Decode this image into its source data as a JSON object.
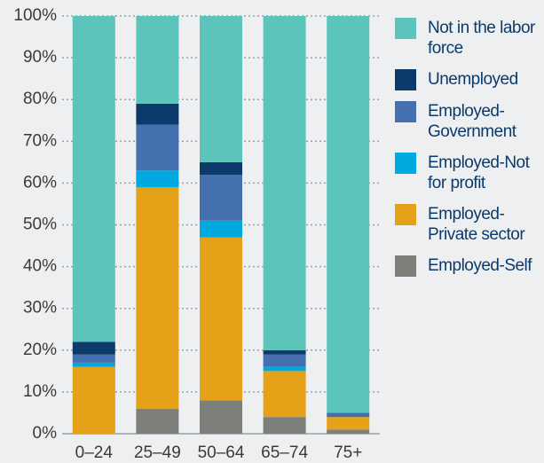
{
  "chart_data": {
    "type": "stacked_bar",
    "categories": [
      "0–24",
      "25–49",
      "50–64",
      "65–74",
      "75+"
    ],
    "series": [
      {
        "name": "Employed-Self",
        "color": "#7d7f7b",
        "values": [
          0,
          6,
          8,
          4,
          1
        ]
      },
      {
        "name": "Employed-Private sector",
        "color": "#e5a117",
        "values": [
          16,
          53,
          39,
          11,
          3
        ]
      },
      {
        "name": "Employed-Not for profit",
        "color": "#00a9e0",
        "values": [
          1,
          4,
          4,
          1,
          0
        ]
      },
      {
        "name": "Employed-Government",
        "color": "#4470b0",
        "values": [
          2,
          11,
          11,
          3,
          1
        ]
      },
      {
        "name": "Unemployed",
        "color": "#0b3a6b",
        "values": [
          3,
          5,
          3,
          1,
          0
        ]
      },
      {
        "name": "Not in the labor force",
        "color": "#5bc5bb",
        "values": [
          78,
          21,
          35,
          80,
          95
        ]
      }
    ],
    "ylim": [
      0,
      100
    ],
    "yticks": [
      {
        "value": 0,
        "label": "0%"
      },
      {
        "value": 10,
        "label": "10%"
      },
      {
        "value": 20,
        "label": "20%"
      },
      {
        "value": 30,
        "label": "30%"
      },
      {
        "value": 40,
        "label": "40%"
      },
      {
        "value": 50,
        "label": "50%"
      },
      {
        "value": 60,
        "label": "60%"
      },
      {
        "value": 70,
        "label": "70%"
      },
      {
        "value": 80,
        "label": "80%"
      },
      {
        "value": 90,
        "label": "90%"
      },
      {
        "value": 100,
        "label": "100%"
      }
    ],
    "grid": true,
    "legend": "right"
  }
}
